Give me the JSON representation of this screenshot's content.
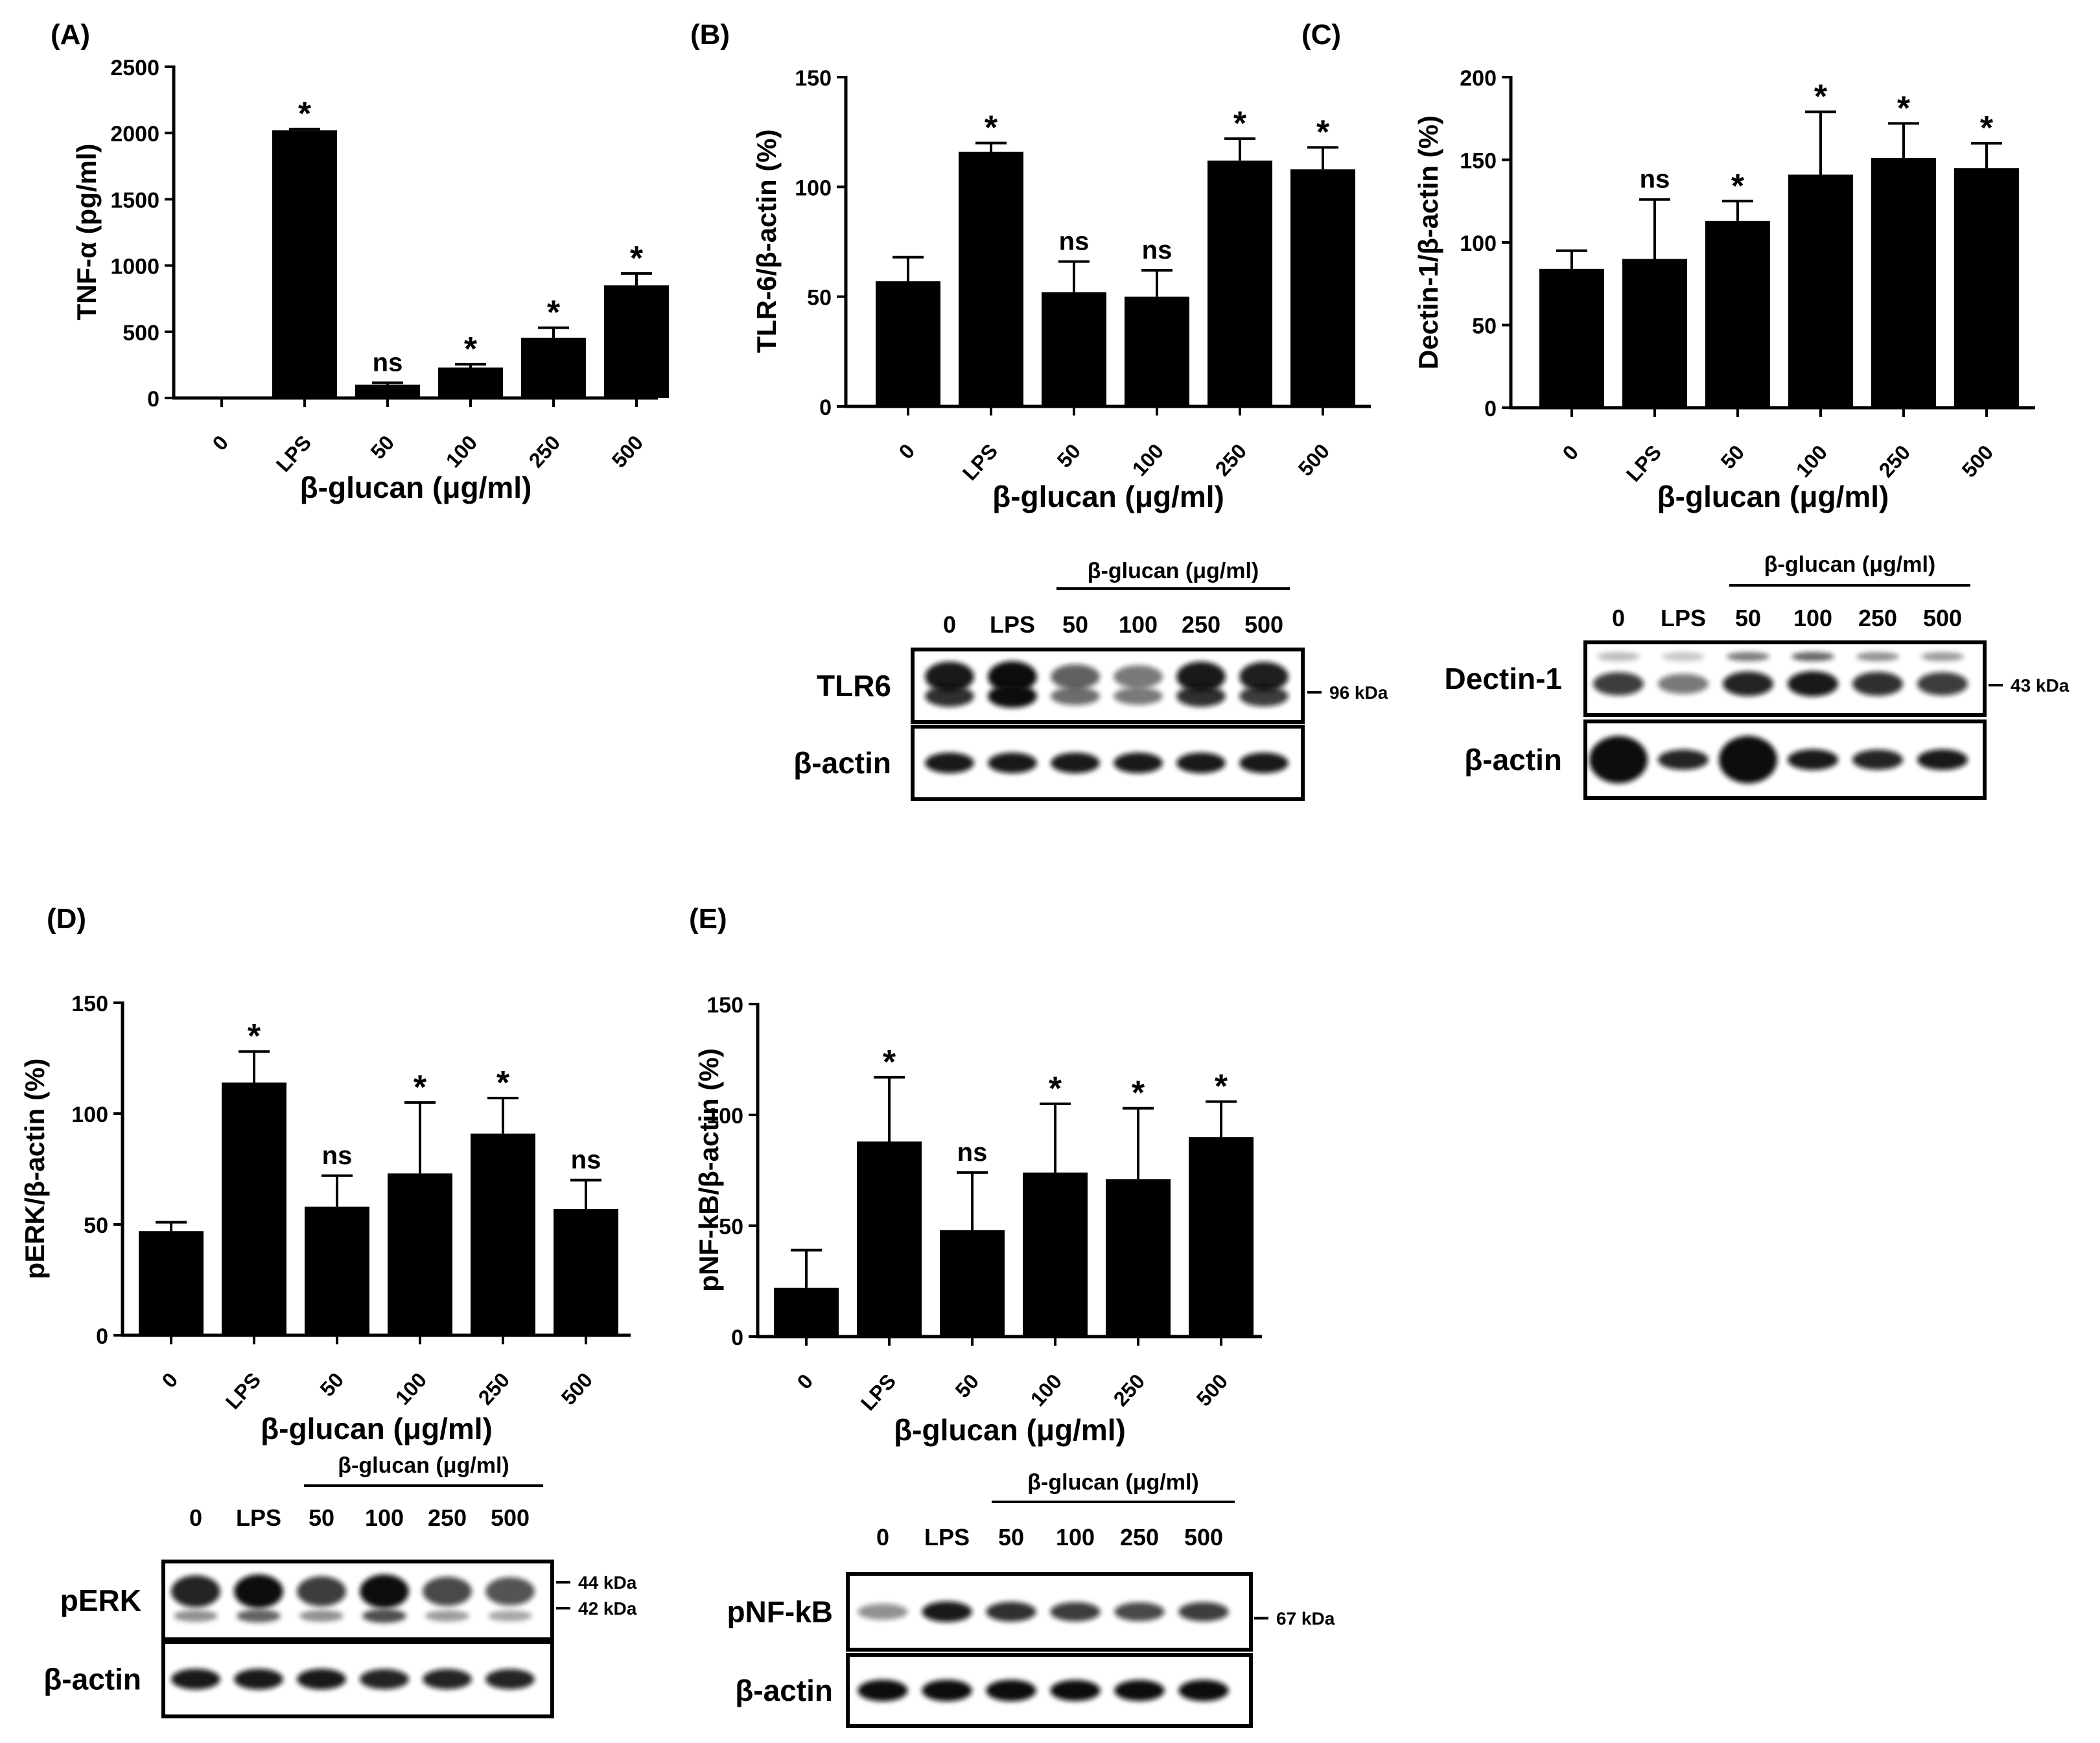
{
  "chart_data": [
    {
      "id": "A",
      "panel_label": "(A)",
      "type": "bar",
      "categories": [
        "0",
        "LPS",
        "50",
        "100",
        "250",
        "500"
      ],
      "values": [
        0,
        2020,
        100,
        230,
        455,
        850
      ],
      "errors": [
        0,
        10,
        15,
        25,
        75,
        90
      ],
      "annotations": [
        "",
        "*",
        "ns",
        "*",
        "*",
        "*"
      ],
      "ylim": [
        0,
        2500
      ],
      "yticks": [
        0,
        500,
        1000,
        1500,
        2000,
        2500
      ],
      "ytick_labels": [
        "0",
        "500",
        "1000",
        "1500",
        "2000",
        "2500"
      ],
      "ylabel": "TNF-α (pg/ml)",
      "xlabel": "β-glucan (μg/ml)"
    },
    {
      "id": "B",
      "panel_label": "(B)",
      "type": "bar",
      "categories": [
        "0",
        "LPS",
        "50",
        "100",
        "250",
        "500"
      ],
      "values": [
        57,
        116,
        52,
        50,
        112,
        108
      ],
      "errors": [
        11,
        4,
        14,
        12,
        10,
        10
      ],
      "annotations": [
        "",
        "*",
        "ns",
        "ns",
        "*",
        "*"
      ],
      "ylim": [
        0,
        150
      ],
      "yticks": [
        0,
        50,
        100,
        150
      ],
      "ytick_labels": [
        "0",
        "50",
        "100",
        "150"
      ],
      "ylabel": "TLR-6/β-actin (%)",
      "xlabel": "β-glucan (μg/ml)"
    },
    {
      "id": "C",
      "panel_label": "(C)",
      "type": "bar",
      "categories": [
        "0",
        "LPS",
        "50",
        "100",
        "250",
        "500"
      ],
      "values": [
        84,
        90,
        113,
        141,
        151,
        145
      ],
      "errors": [
        11,
        36,
        12,
        38,
        21,
        15
      ],
      "annotations": [
        "",
        "ns",
        "*",
        "*",
        "*",
        "*"
      ],
      "ylim": [
        0,
        200
      ],
      "yticks": [
        0,
        50,
        100,
        150,
        200
      ],
      "ytick_labels": [
        "0",
        "50",
        "100",
        "150",
        "200"
      ],
      "ylabel": "Dectin-1/β-actin (%)",
      "xlabel": "β-glucan (μg/ml)"
    },
    {
      "id": "D",
      "panel_label": "(D)",
      "type": "bar",
      "categories": [
        "0",
        "LPS",
        "50",
        "100",
        "250",
        "500"
      ],
      "values": [
        47,
        114,
        58,
        73,
        91,
        57
      ],
      "errors": [
        4,
        14,
        14,
        32,
        16,
        13
      ],
      "annotations": [
        "",
        "*",
        "ns",
        "*",
        "*",
        "ns"
      ],
      "ylim": [
        0,
        150
      ],
      "yticks": [
        0,
        50,
        100,
        150
      ],
      "ytick_labels": [
        "0",
        "50",
        "100",
        "150"
      ],
      "ylabel": "pERK/β-actin (%)",
      "xlabel": "β-glucan (μg/ml)"
    },
    {
      "id": "E",
      "panel_label": "(E)",
      "type": "bar",
      "categories": [
        "0",
        "LPS",
        "50",
        "100",
        "250",
        "500"
      ],
      "values": [
        22,
        88,
        48,
        74,
        71,
        90
      ],
      "errors": [
        17,
        29,
        26,
        31,
        32,
        16
      ],
      "annotations": [
        "",
        "*",
        "ns",
        "*",
        "*",
        "*"
      ],
      "ylim": [
        0,
        150
      ],
      "yticks": [
        0,
        50,
        100,
        150
      ],
      "ytick_labels": [
        "0",
        "50",
        "100",
        "150"
      ],
      "ylabel": "pNF-kB/β-actin (%)",
      "xlabel": "β-glucan (μg/ml)"
    }
  ],
  "blots": [
    {
      "id": "B",
      "group_label": "β-glucan (μg/ml)",
      "lanes": [
        "0",
        "LPS",
        "50",
        "100",
        "250",
        "500"
      ],
      "rows": [
        {
          "label": "TLR6",
          "markers": [
            "96 kDa"
          ]
        },
        {
          "label": "β-actin",
          "markers": []
        }
      ]
    },
    {
      "id": "C",
      "group_label": "β-glucan (μg/ml)",
      "lanes": [
        "0",
        "LPS",
        "50",
        "100",
        "250",
        "500"
      ],
      "rows": [
        {
          "label": "Dectin-1",
          "markers": [
            "43 kDa"
          ]
        },
        {
          "label": "β-actin",
          "markers": []
        }
      ]
    },
    {
      "id": "D",
      "group_label": "β-glucan (μg/ml)",
      "lanes": [
        "0",
        "LPS",
        "50",
        "100",
        "250",
        "500"
      ],
      "rows": [
        {
          "label": "pERK",
          "markers": [
            "44 kDa",
            "42 kDa"
          ]
        },
        {
          "label": "β-actin",
          "markers": []
        }
      ]
    },
    {
      "id": "E",
      "group_label": "β-glucan (μg/ml)",
      "lanes": [
        "0",
        "LPS",
        "50",
        "100",
        "250",
        "500"
      ],
      "rows": [
        {
          "label": "pNF-kB",
          "markers": [
            "67 kDa"
          ]
        },
        {
          "label": "β-actin",
          "markers": []
        }
      ]
    }
  ]
}
